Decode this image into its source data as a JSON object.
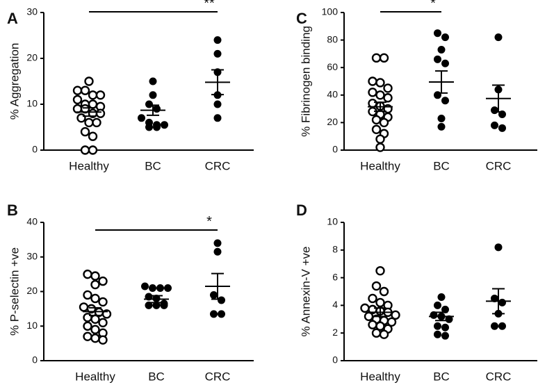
{
  "figure": {
    "background": "#ffffff",
    "ink": "#000000"
  },
  "chart_data": [
    {
      "panel": "A",
      "type": "scatter",
      "ylabel": "% Aggregation",
      "ylim": [
        0,
        30
      ],
      "yticks": [
        0,
        10,
        20,
        30
      ],
      "categories": [
        "Healthy",
        "BC",
        "CRC"
      ],
      "groups": [
        {
          "name": "Healthy",
          "marker": "open",
          "points": [
            15,
            13,
            13,
            12,
            12,
            11,
            10,
            10,
            9.5,
            9,
            9,
            8,
            8,
            7,
            6,
            6,
            4,
            3,
            0,
            0
          ],
          "mean": 8.3,
          "sem_low": 7.4,
          "sem_high": 9.2
        },
        {
          "name": "BC",
          "marker": "filled",
          "points": [
            15,
            12,
            10,
            9,
            7,
            6,
            5.5,
            5.5,
            5,
            5
          ],
          "mean": 8.7,
          "sem_low": 7.6,
          "sem_high": 9.8
        },
        {
          "name": "CRC",
          "marker": "filled",
          "points": [
            24,
            21,
            17,
            12,
            10,
            7
          ],
          "mean": 14.8,
          "sem_low": 12.1,
          "sem_high": 17.5
        }
      ],
      "significance": [
        {
          "from": "Healthy",
          "to": "CRC",
          "label": "**"
        }
      ]
    },
    {
      "panel": "B",
      "type": "scatter",
      "ylabel": "% P-selectin +ve",
      "ylim": [
        0,
        40
      ],
      "yticks": [
        0,
        10,
        20,
        30,
        40
      ],
      "categories": [
        "Healthy",
        "BC",
        "CRC"
      ],
      "groups": [
        {
          "name": "Healthy",
          "marker": "open",
          "points": [
            25,
            24.5,
            23,
            22,
            19,
            18,
            17,
            15.5,
            15,
            14,
            13.5,
            12.5,
            12,
            11,
            10,
            9,
            8,
            7,
            6.5,
            6
          ],
          "mean": 14.2,
          "sem_low": 13.1,
          "sem_high": 15.3
        },
        {
          "name": "BC",
          "marker": "filled",
          "points": [
            21.5,
            21,
            21,
            21,
            18.5,
            18,
            16.5,
            16,
            16,
            16
          ],
          "mean": 17.8,
          "sem_low": 16.8,
          "sem_high": 18.8
        },
        {
          "name": "CRC",
          "marker": "filled",
          "points": [
            34,
            31.5,
            19,
            17.5,
            13.5,
            13.5
          ],
          "mean": 21.5,
          "sem_low": 17.8,
          "sem_high": 25.2
        }
      ],
      "significance": [
        {
          "from": "Healthy",
          "to": "CRC",
          "label": "*"
        }
      ]
    },
    {
      "panel": "C",
      "type": "scatter",
      "ylabel": "% Fibrinogen binding",
      "ylim": [
        0,
        100
      ],
      "yticks": [
        0,
        20,
        40,
        60,
        80,
        100
      ],
      "categories": [
        "Healthy",
        "BC",
        "CRC"
      ],
      "groups": [
        {
          "name": "Healthy",
          "marker": "open",
          "points": [
            67,
            67,
            50,
            49,
            45,
            42,
            40,
            38,
            34,
            32,
            30,
            28,
            26,
            24,
            22,
            20,
            15,
            12,
            8,
            2
          ],
          "mean": 31.5,
          "sem_low": 28.2,
          "sem_high": 34.8
        },
        {
          "name": "BC",
          "marker": "filled",
          "points": [
            85,
            82,
            73,
            66,
            63,
            40,
            36,
            23,
            17
          ],
          "mean": 49.5,
          "sem_low": 41.5,
          "sem_high": 57.5
        },
        {
          "name": "CRC",
          "marker": "filled",
          "points": [
            82,
            44,
            29,
            26,
            18,
            16
          ],
          "mean": 37.5,
          "sem_low": 27.8,
          "sem_high": 47.2
        }
      ],
      "significance": [
        {
          "from": "Healthy",
          "to": "BC",
          "label": "*"
        }
      ]
    },
    {
      "panel": "D",
      "type": "scatter",
      "ylabel": "% Annexin-V +ve",
      "ylim": [
        0,
        10
      ],
      "yticks": [
        0,
        2,
        4,
        6,
        8,
        10
      ],
      "categories": [
        "Healthy",
        "BC",
        "CRC"
      ],
      "groups": [
        {
          "name": "Healthy",
          "marker": "open",
          "points": [
            6.5,
            5.4,
            5.0,
            4.5,
            4.2,
            4.0,
            3.8,
            3.7,
            3.6,
            3.5,
            3.3,
            3.2,
            3.0,
            2.9,
            2.8,
            2.6,
            2.5,
            2.3,
            2.0,
            1.9
          ],
          "mean": 3.5,
          "sem_low": 3.2,
          "sem_high": 3.8
        },
        {
          "name": "BC",
          "marker": "filled",
          "points": [
            4.6,
            4.0,
            3.7,
            3.3,
            3.2,
            3.0,
            2.5,
            2.4,
            1.9,
            1.8
          ],
          "mean": 3.2,
          "sem_low": 2.9,
          "sem_high": 3.5
        },
        {
          "name": "CRC",
          "marker": "filled",
          "points": [
            8.2,
            4.5,
            4.2,
            3.4,
            2.5,
            2.5
          ],
          "mean": 4.3,
          "sem_low": 3.4,
          "sem_high": 5.2
        }
      ],
      "significance": []
    }
  ]
}
